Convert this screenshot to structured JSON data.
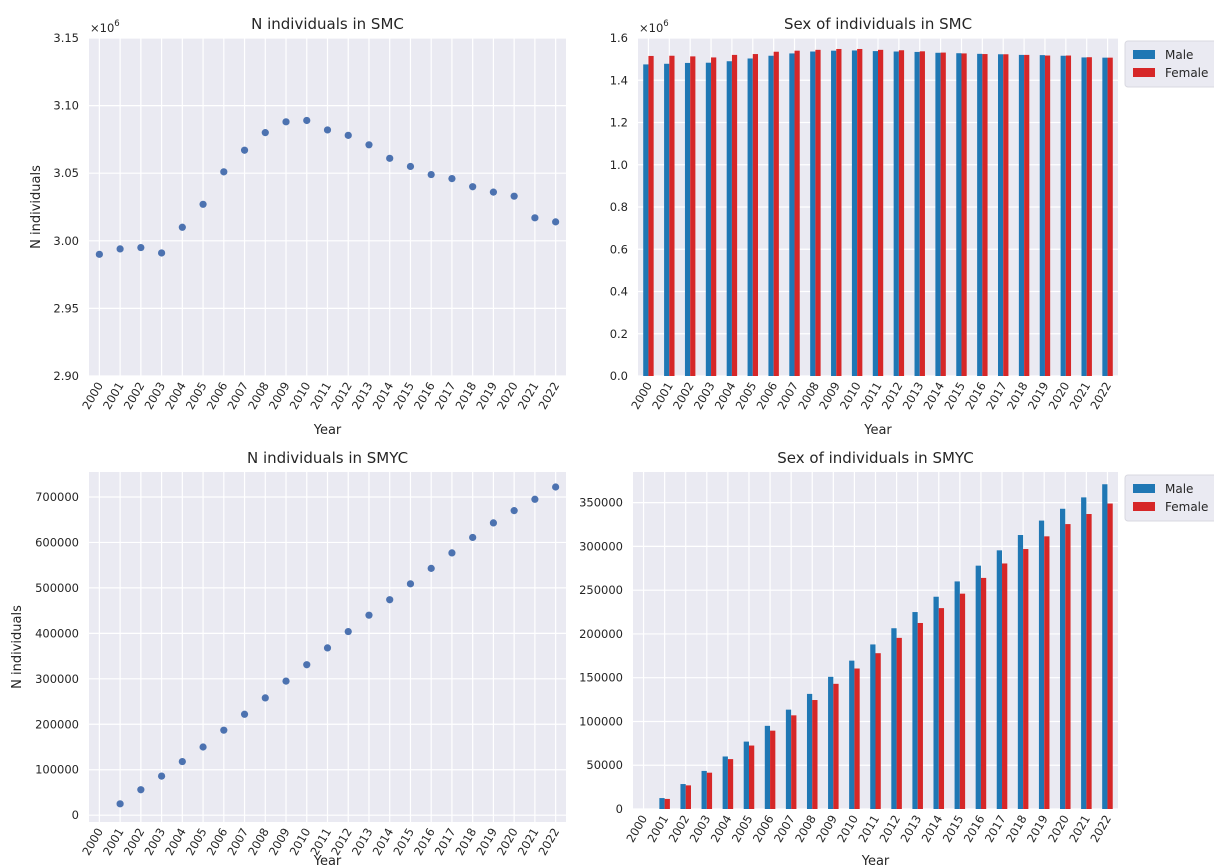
{
  "chart_data": [
    {
      "type": "scatter",
      "title": "N individuals in SMC",
      "xlabel": "Year",
      "ylabel": "N individuals",
      "y_offset_text": "×10^6",
      "categories": [
        "2000",
        "2001",
        "2002",
        "2003",
        "2004",
        "2005",
        "2006",
        "2007",
        "2008",
        "2009",
        "2010",
        "2011",
        "2012",
        "2013",
        "2014",
        "2015",
        "2016",
        "2017",
        "2018",
        "2019",
        "2020",
        "2021",
        "2022"
      ],
      "values": [
        2.99,
        2.994,
        2.995,
        2.991,
        3.01,
        3.027,
        3.051,
        3.067,
        3.08,
        3.088,
        3.089,
        3.082,
        3.078,
        3.071,
        3.061,
        3.055,
        3.049,
        3.046,
        3.04,
        3.036,
        3.033,
        3.017,
        3.014
      ],
      "ylim": [
        2.9,
        3.15
      ],
      "yticks": [
        "2.90",
        "2.95",
        "3.00",
        "3.05",
        "3.10",
        "3.15"
      ],
      "grid": true,
      "color": "#4c72b0"
    },
    {
      "type": "bar",
      "title": "Sex of individuals in SMC",
      "xlabel": "Year",
      "ylabel": "",
      "y_offset_text": "×10^6",
      "categories": [
        "2000",
        "2001",
        "2002",
        "2003",
        "2004",
        "2005",
        "2006",
        "2007",
        "2008",
        "2009",
        "2010",
        "2011",
        "2012",
        "2013",
        "2014",
        "2015",
        "2016",
        "2017",
        "2018",
        "2019",
        "2020",
        "2021",
        "2022"
      ],
      "series": [
        {
          "name": "Male",
          "color": "#1f77b4",
          "values": [
            1.475,
            1.478,
            1.482,
            1.483,
            1.49,
            1.503,
            1.516,
            1.527,
            1.536,
            1.54,
            1.541,
            1.538,
            1.536,
            1.534,
            1.53,
            1.528,
            1.525,
            1.523,
            1.52,
            1.519,
            1.516,
            1.508,
            1.507
          ]
        },
        {
          "name": "Female",
          "color": "#d62728",
          "values": [
            1.515,
            1.516,
            1.513,
            1.508,
            1.52,
            1.524,
            1.535,
            1.54,
            1.544,
            1.548,
            1.548,
            1.544,
            1.542,
            1.537,
            1.531,
            1.527,
            1.524,
            1.523,
            1.52,
            1.517,
            1.517,
            1.509,
            1.507
          ]
        }
      ],
      "ylim": [
        0,
        1.6
      ],
      "yticks": [
        "0.0",
        "0.2",
        "0.4",
        "0.6",
        "0.8",
        "1.0",
        "1.2",
        "1.4",
        "1.6"
      ],
      "grid": true,
      "legend": "outside-top-right"
    },
    {
      "type": "scatter",
      "title": "N individuals in SMYC",
      "xlabel": "Year",
      "ylabel": "N individuals",
      "categories": [
        "2000",
        "2001",
        "2002",
        "2003",
        "2004",
        "2005",
        "2006",
        "2007",
        "2008",
        "2009",
        "2010",
        "2011",
        "2012",
        "2013",
        "2014",
        "2015",
        "2016",
        "2017",
        "2018",
        "2019",
        "2020",
        "2021",
        "2022"
      ],
      "values": [
        null,
        25000,
        56000,
        86000,
        118000,
        150000,
        187000,
        222000,
        258000,
        295000,
        331000,
        368000,
        404000,
        440000,
        474000,
        509000,
        543000,
        577000,
        611000,
        643000,
        670000,
        695000,
        722000
      ],
      "ylim": [
        -15000,
        755000
      ],
      "yticks": [
        "0",
        "100000",
        "200000",
        "300000",
        "400000",
        "500000",
        "600000",
        "700000"
      ],
      "grid": true,
      "color": "#4c72b0"
    },
    {
      "type": "bar",
      "title": "Sex of individuals in SMYC",
      "xlabel": "Year",
      "ylabel": "",
      "categories": [
        "2000",
        "2001",
        "2002",
        "2003",
        "2004",
        "2005",
        "2006",
        "2007",
        "2008",
        "2009",
        "2010",
        "2011",
        "2012",
        "2013",
        "2014",
        "2015",
        "2016",
        "2017",
        "2018",
        "2019",
        "2020",
        "2021",
        "2022"
      ],
      "series": [
        {
          "name": "Male",
          "color": "#1f77b4",
          "values": [
            0,
            12500,
            28500,
            43500,
            60000,
            77000,
            95000,
            113500,
            131500,
            151000,
            169500,
            188000,
            206500,
            225000,
            242500,
            260000,
            278000,
            295500,
            313000,
            329500,
            343000,
            356000,
            371000
          ]
        },
        {
          "name": "Female",
          "color": "#d62728",
          "values": [
            0,
            11500,
            27000,
            41500,
            57000,
            72500,
            89500,
            107000,
            124500,
            143000,
            160500,
            178000,
            195500,
            212500,
            229500,
            246000,
            264000,
            280500,
            297000,
            311500,
            325500,
            337000,
            349000
          ]
        }
      ],
      "ylim": [
        0,
        385000
      ],
      "yticks": [
        "0",
        "50000",
        "100000",
        "150000",
        "200000",
        "250000",
        "300000",
        "350000"
      ],
      "grid": true,
      "legend": "outside-top-right"
    }
  ]
}
